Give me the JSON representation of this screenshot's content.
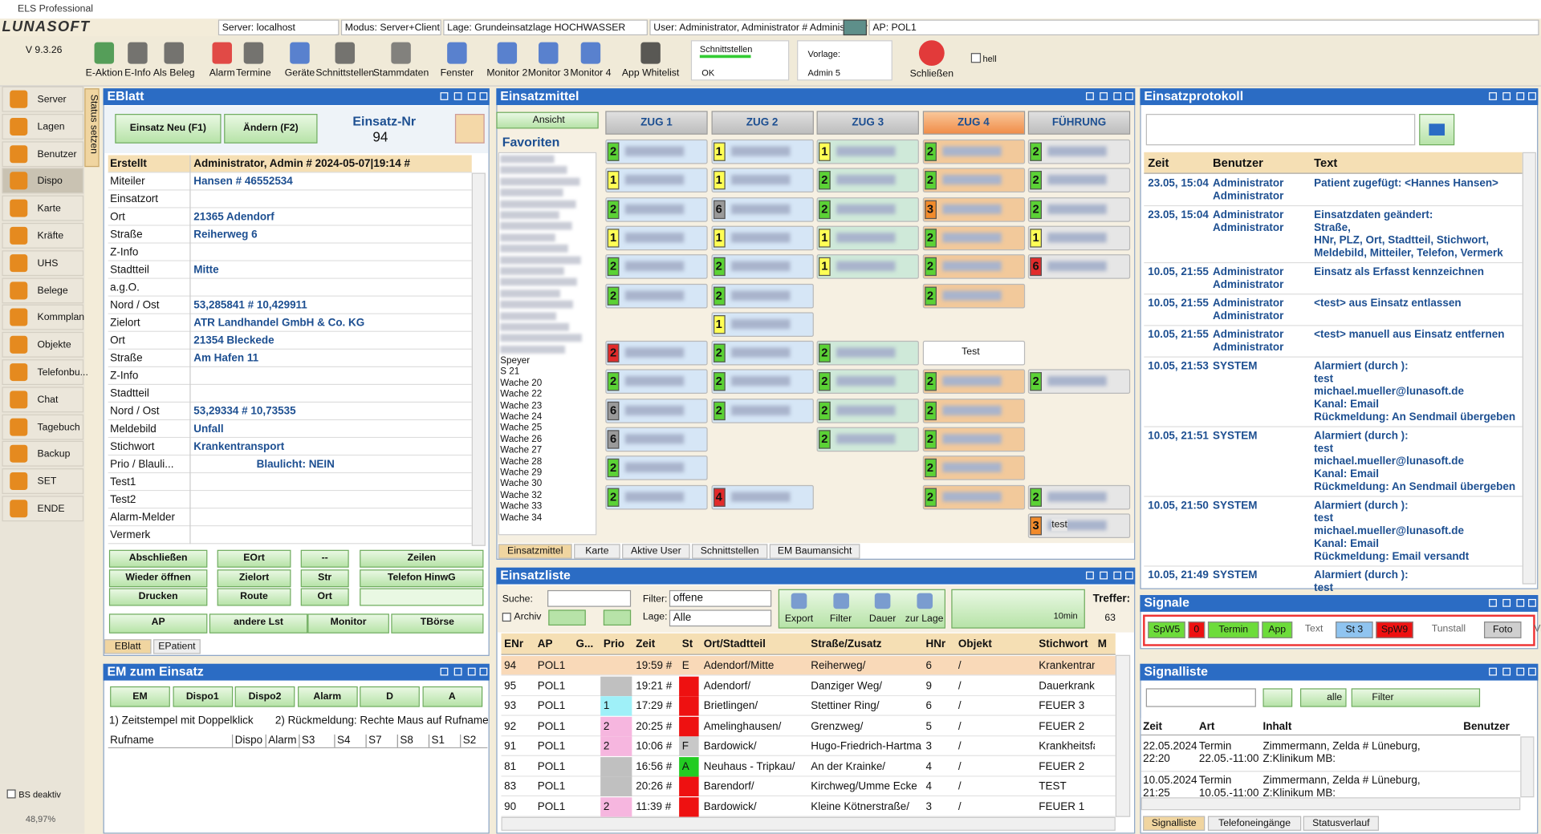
{
  "app": {
    "title": "ELS Professional",
    "logo": "LUNASOFT",
    "version": "V 9.3.26",
    "status": [
      "Server: localhost",
      "Modus: Server+Client",
      "Lage: Grundeinsatzlage HOCHWASSER",
      "User: Administrator, Administrator # Administrator",
      "AP: POL1"
    ]
  },
  "toolbar": {
    "buttons": [
      "E-Aktion",
      "E-Info",
      "Als Beleg",
      "Alarm",
      "Termine",
      "Geräte",
      "Schnittstellen",
      "Stammdaten",
      "Fenster",
      "Monitor 2",
      "Monitor 3",
      "Monitor 4",
      "App Whitelist"
    ],
    "schnittstellen": {
      "label": "Schnittstellen",
      "value": "OK"
    },
    "vorlage": {
      "label": "Vorlage:",
      "value": "Admin 5"
    },
    "close": "Schließen",
    "hell": "hell"
  },
  "sidebar": {
    "items": [
      "Server",
      "Lagen",
      "Benutzer",
      "Dispo",
      "Karte",
      "Kräfte",
      "UHS",
      "Belege",
      "Kommplan",
      "Objekte",
      "Telefonbu...",
      "Chat",
      "Tagebuch",
      "Backup",
      "SET",
      "ENDE"
    ],
    "selected": 3,
    "footer": [
      "BS deaktiv",
      "48,97%"
    ],
    "tab": "Status setzen"
  },
  "eblatt": {
    "title": "EBlatt",
    "new": "Einsatz Neu (F1)",
    "edit": "Ändern (F2)",
    "nr_label": "Einsatz-Nr",
    "nr": "94",
    "rows": [
      {
        "label": "Erstellt",
        "value": "Administrator, Admin # 2024-05-07|19:14 #"
      },
      {
        "label": "Miteiler",
        "value": "Hansen # 46552534"
      },
      {
        "label": "Einsatzort"
      },
      {
        "label": "Ort",
        "value": "21365 Adendorf"
      },
      {
        "label": "Straße",
        "value": "Reiherweg 6"
      },
      {
        "label": "Z-Info"
      },
      {
        "label": "Stadtteil",
        "value": "Mitte"
      },
      {
        "label": "a.g.O."
      },
      {
        "label": "Nord / Ost",
        "value": "53,285841 # 10,429911"
      },
      {
        "label": "Zielort",
        "value": "ATR Landhandel GmbH & Co. KG"
      },
      {
        "label": "Ort",
        "value": "21354 Bleckede"
      },
      {
        "label": "Straße",
        "value": "Am Hafen 11"
      },
      {
        "label": "Z-Info"
      },
      {
        "label": "Stadtteil"
      },
      {
        "label": "Nord / Ost",
        "value": "53,29334 # 10,73535"
      },
      {
        "label": "Meldebild",
        "value": "Unfall"
      },
      {
        "label": "Stichwort",
        "value": "Krankentransport"
      },
      {
        "label": "Prio / Blauli...",
        "value": "Blaulicht: NEIN"
      },
      {
        "label": "Test1"
      },
      {
        "label": "Test2"
      },
      {
        "label": "Alarm-Melder"
      },
      {
        "label": "Vermerk"
      }
    ],
    "buttons": [
      "Abschließen",
      "Wieder öffnen",
      "Drucken",
      "EOrt",
      "Zielort",
      "Route",
      "--",
      "Str",
      "Ort",
      "Zeilen",
      "Telefon HinwG",
      "AP",
      "andere Lst",
      "Monitor",
      "TBörse"
    ],
    "tabs": [
      "EBlatt",
      "EPatient"
    ]
  },
  "em_einsatz": {
    "title": "EM zum Einsatz",
    "buttons": [
      "EM",
      "Dispo1",
      "Dispo2",
      "Alarm",
      "D",
      "A"
    ],
    "hints": [
      "1) Zeitstempel mit Doppelklick",
      "2) Rückmeldung:  Rechte Maus auf Rufname"
    ],
    "columns": [
      "Rufname",
      "Dispo",
      "Alarm",
      "S3",
      "S4",
      "S7",
      "S8",
      "S1",
      "S2"
    ]
  },
  "einsatzmittel": {
    "title": "Einsatzmittel",
    "view": "Ansicht",
    "favorites": "Favoriten",
    "list": [
      "Speyer",
      "S 21",
      "Wache 20",
      "Wache 22",
      "Wache 23",
      "Wache 24",
      "Wache 25",
      "Wache 26",
      "Wache 27",
      "Wache 28",
      "Wache 29",
      "Wache 30",
      "Wache 32",
      "Wache 33",
      "Wache 34"
    ],
    "columns": [
      {
        "name": "ZUG 1",
        "color": "#d6e6f6",
        "cells": [
          {
            "status": "2",
            "color": "#5bd235"
          },
          {
            "status": "1",
            "color": "#ffff55"
          },
          {
            "status": "2",
            "color": "#5bd235"
          },
          {
            "status": "1",
            "color": "#ffff55"
          },
          {
            "status": "2",
            "color": "#5bd235"
          },
          {
            "status": "2",
            "color": "#5bd235"
          },
          null,
          {
            "status": "2",
            "color": "#e22b2b"
          },
          {
            "status": "2",
            "color": "#5bd235"
          },
          {
            "status": "6",
            "color": "#9a9a9a"
          },
          {
            "status": "6",
            "color": "#9a9a9a"
          },
          {
            "status": "2",
            "color": "#5bd235"
          },
          {
            "status": "2",
            "color": "#5bd235"
          },
          null
        ]
      },
      {
        "name": "ZUG 2",
        "color": "#d6e6f6",
        "cells": [
          {
            "status": "1",
            "color": "#ffff55"
          },
          {
            "status": "1",
            "color": "#ffff55"
          },
          {
            "status": "6",
            "color": "#9a9a9a"
          },
          {
            "status": "1",
            "color": "#ffff55"
          },
          {
            "status": "2",
            "color": "#5bd235"
          },
          {
            "status": "2",
            "color": "#5bd235"
          },
          {
            "status": "1",
            "color": "#ffff55"
          },
          {
            "status": "2",
            "color": "#5bd235"
          },
          {
            "status": "2",
            "color": "#5bd235"
          },
          {
            "status": "2",
            "color": "#5bd235"
          },
          null,
          null,
          {
            "status": "4",
            "color": "#e22b2b"
          },
          null
        ]
      },
      {
        "name": "ZUG 3",
        "color": "#cfe9d9",
        "cells": [
          {
            "status": "1",
            "color": "#ffff55"
          },
          {
            "status": "2",
            "color": "#5bd235"
          },
          {
            "status": "2",
            "color": "#5bd235"
          },
          {
            "status": "1",
            "color": "#ffff55"
          },
          {
            "status": "1",
            "color": "#ffff55"
          },
          null,
          null,
          {
            "status": "2",
            "color": "#5bd235"
          },
          {
            "status": "2",
            "color": "#5bd235"
          },
          {
            "status": "2",
            "color": "#5bd235"
          },
          {
            "status": "2",
            "color": "#5bd235"
          },
          null,
          null,
          null
        ]
      },
      {
        "name": "ZUG 4",
        "color": "#f2c99b",
        "cells": [
          {
            "status": "2",
            "color": "#5bd235"
          },
          {
            "status": "2",
            "color": "#5bd235"
          },
          {
            "status": "3",
            "color": "#f28b2b"
          },
          {
            "status": "2",
            "color": "#5bd235"
          },
          {
            "status": "2",
            "color": "#5bd235"
          },
          {
            "status": "2",
            "color": "#5bd235"
          },
          null,
          {
            "text": "Test"
          },
          {
            "status": "2",
            "color": "#5bd235"
          },
          {
            "status": "2",
            "color": "#5bd235"
          },
          {
            "status": "2",
            "color": "#5bd235"
          },
          {
            "status": "2",
            "color": "#5bd235"
          },
          {
            "status": "2",
            "color": "#5bd235"
          },
          null
        ]
      },
      {
        "name": "FÜHRUNG",
        "color": "#e6e6e6",
        "cells": [
          {
            "status": "2",
            "color": "#5bd235"
          },
          {
            "status": "2",
            "color": "#5bd235"
          },
          {
            "status": "2",
            "color": "#5bd235"
          },
          {
            "status": "1",
            "color": "#ffff55"
          },
          {
            "status": "6",
            "color": "#e22b2b"
          },
          null,
          null,
          null,
          {
            "status": "2",
            "color": "#5bd235"
          },
          null,
          null,
          null,
          {
            "status": "2",
            "color": "#5bd235"
          },
          {
            "status": "3",
            "color": "#f28b2b",
            "text": "test"
          }
        ]
      }
    ],
    "tabs": [
      "Einsatzmittel",
      "Karte",
      "Aktive User",
      "Schnittstellen",
      "EM Baumansicht"
    ]
  },
  "einsatzliste": {
    "title": "Einsatzliste",
    "search": "Suche:",
    "archiv": "Archiv",
    "filter_label": "Filter:",
    "filter": "offene",
    "lage_label": "Lage:",
    "lage": "Alle",
    "tools": [
      "Export",
      "Filter",
      "Dauer",
      "zur Lage"
    ],
    "timer": "10min",
    "hits_label": "Treffer:",
    "hits": "63",
    "columns": [
      "ENr",
      "AP",
      "G...",
      "Prio",
      "Zeit",
      "St",
      "Ort/Stadtteil",
      "Straße/Zusatz",
      "HNr",
      "Objekt",
      "Stichwort",
      "M"
    ],
    "rows": [
      {
        "enr": "94",
        "ap": "POL1",
        "zeit": "19:59 #",
        "st": "E",
        "ort": "Adendorf/Mitte",
        "strasse": "Reiherweg/",
        "hnr": "6",
        "objekt": "/",
        "stichwort": "Krankentransp..."
      },
      {
        "enr": "95",
        "ap": "POL1",
        "zeit": "19:21 #",
        "ort": "Adendorf/",
        "strasse": "Danziger Weg/",
        "hnr": "9",
        "objekt": "/",
        "stichwort": "Dauerkranker",
        "prio_color": "#c0c0c0",
        "st_color": "#ee1111"
      },
      {
        "enr": "93",
        "ap": "POL1",
        "prio": "1",
        "zeit": "17:29 #",
        "ort": "Brietlingen/",
        "strasse": "Stettiner Ring/",
        "hnr": "6",
        "objekt": "/",
        "stichwort": "FEUER 3",
        "prio_color": "#9ff0f8",
        "st_color": "#ee1111"
      },
      {
        "enr": "92",
        "ap": "POL1",
        "prio": "2",
        "zeit": "20:25 #",
        "ort": "Amelinghausen/",
        "strasse": "Grenzweg/",
        "hnr": "5",
        "objekt": "/",
        "stichwort": "FEUER 2",
        "prio_color": "#f6b6df",
        "st_color": "#ee1111"
      },
      {
        "enr": "91",
        "ap": "POL1",
        "prio": "2",
        "zeit": "10:06 #",
        "st": "F",
        "ort": "Bardowick/",
        "strasse": "Hugo-Friedrich-Hartma",
        "hnr": "3",
        "objekt": "/",
        "stichwort": "Krankheitsfall",
        "prio_color": "#f6b6df",
        "st_color": "#c8c8c8"
      },
      {
        "enr": "81",
        "ap": "POL1",
        "zeit": "16:56 #",
        "st": "A",
        "ort": "Neuhaus - Tripkau/",
        "strasse": "An der Krainke/",
        "hnr": "4",
        "objekt": "/",
        "stichwort": "FEUER 2",
        "prio_color": "#c0c0c0",
        "st_color": "#22cc22"
      },
      {
        "enr": "83",
        "ap": "POL1",
        "zeit": "20:26 #",
        "ort": "Barendorf/",
        "strasse": "Kirchweg/Umme Ecke",
        "hnr": "4",
        "objekt": "/",
        "stichwort": "TEST",
        "prio_color": "#c0c0c0",
        "st_color": "#ee1111"
      },
      {
        "enr": "90",
        "ap": "POL1",
        "prio": "2",
        "zeit": "11:39 #",
        "ort": "Bardowick/",
        "strasse": "Kleine Kötnerstraße/",
        "hnr": "3",
        "objekt": "/",
        "stichwort": "FEUER 1",
        "prio_color": "#f6b6df",
        "st_color": "#ee1111"
      }
    ]
  },
  "protokoll": {
    "title": "Einsatzprotokoll",
    "columns": [
      "Zeit",
      "Benutzer",
      "Text"
    ],
    "rows": [
      {
        "time": "23.05, 15:04",
        "user": [
          "Administrator",
          "Administrator"
        ],
        "text": [
          "Patient zugefügt: <Hannes Hansen>"
        ]
      },
      {
        "time": "23.05, 15:04",
        "user": [
          "Administrator",
          "Administrator"
        ],
        "text": [
          "Einsatzdaten geändert:",
          "Straße,",
          "HNr, PLZ, Ort, Stadtteil, Stichwort,",
          "Meldebild, Mitteiler, Telefon, Vermerk"
        ]
      },
      {
        "time": "10.05, 21:55",
        "user": [
          "Administrator",
          "Administrator"
        ],
        "text": [
          "Einsatz als Erfasst kennzeichnen"
        ]
      },
      {
        "time": "10.05, 21:55",
        "user": [
          "Administrator",
          "Administrator"
        ],
        "text": [
          "<test> aus Einsatz entlassen"
        ]
      },
      {
        "time": "10.05, 21:55",
        "user": [
          "Administrator",
          "Administrator"
        ],
        "text": [
          "<test> manuell aus Einsatz entfernen"
        ]
      },
      {
        "time": "10.05, 21:53",
        "user": [
          "SYSTEM"
        ],
        "text": [
          "Alarmiert (durch ):",
          "test",
          "michael.mueller@lunasoft.de",
          "Kanal: Email",
          "Rückmeldung: An Sendmail übergeben"
        ]
      },
      {
        "time": "10.05, 21:51",
        "user": [
          "SYSTEM"
        ],
        "text": [
          "Alarmiert (durch ):",
          "test",
          "michael.mueller@lunasoft.de",
          "Kanal: Email",
          "Rückmeldung: An Sendmail übergeben"
        ]
      },
      {
        "time": "10.05, 21:50",
        "user": [
          "SYSTEM"
        ],
        "text": [
          "Alarmiert (durch ):",
          "test",
          "michael.mueller@lunasoft.de",
          "Kanal: Email",
          "Rückmeldung: Email versandt"
        ]
      },
      {
        "time": "10.05, 21:49",
        "user": [
          "SYSTEM"
        ],
        "text": [
          "Alarmiert (durch ):",
          "test"
        ]
      }
    ]
  },
  "signale": {
    "title": "Signale",
    "items": [
      {
        "label": "SpW5",
        "color": "#6ddc3a"
      },
      {
        "label": "0",
        "color": "#ee1111"
      },
      {
        "label": "Termin",
        "color": "#6ddc3a"
      },
      {
        "label": "App",
        "color": "#6ddc3a"
      },
      {
        "label": "Text"
      },
      {
        "label": "St 3",
        "color": "#8fc4f0"
      },
      {
        "label": "SpW9",
        "color": "#ee1111"
      },
      {
        "label": "Tunstall"
      },
      {
        "label": "Foto",
        "color": "#cfcfcf"
      },
      {
        "label": "Video"
      }
    ]
  },
  "signalliste": {
    "title": "Signalliste",
    "all": "alle",
    "filter": "Filter",
    "columns": [
      "Zeit",
      "Art",
      "Inhalt",
      "Benutzer"
    ],
    "rows": [
      {
        "date": "22.05.2024",
        "time": "22:20",
        "art": "Termin",
        "art2": "22.05.-11:00",
        "inhalt": [
          "Zimmermann, Zelda # Lüneburg,",
          "Z:Klinikum MB:"
        ]
      },
      {
        "date": "10.05.2024",
        "time": "21:25",
        "art": "Termin",
        "art2": "10.05.-11:00",
        "inhalt": [
          "Zimmermann, Zelda # Lüneburg,",
          "Z:Klinikum MB:"
        ]
      }
    ],
    "tabs": [
      "Signalliste",
      "Telefoneingänge",
      "Statusverlauf"
    ]
  }
}
